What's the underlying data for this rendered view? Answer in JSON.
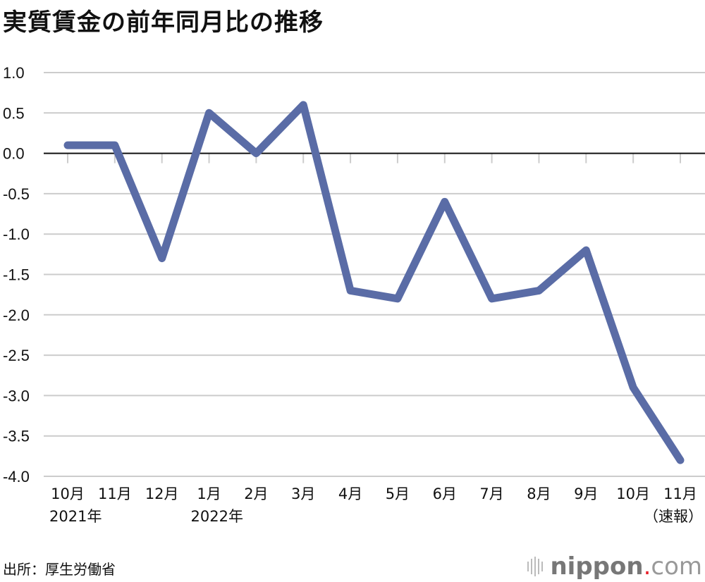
{
  "title": "実質賃金の前年同月比の推移",
  "source": "出所：厚生労働省",
  "logo": {
    "name": "nippon",
    "dot": ".",
    "suffix": "com"
  },
  "colors": {
    "line": "#5a6ca6",
    "grid": "#cccccc",
    "zero_line": "#111111"
  },
  "chart_data": {
    "type": "line",
    "title": "実質賃金の前年同月比の推移",
    "categories": [
      "10月",
      "11月",
      "12月",
      "1月",
      "2月",
      "3月",
      "4月",
      "5月",
      "6月",
      "7月",
      "8月",
      "9月",
      "10月",
      "11月"
    ],
    "category_sublabels": [
      "2021年",
      "",
      "",
      "2022年",
      "",
      "",
      "",
      "",
      "",
      "",
      "",
      "",
      "",
      "（速報）"
    ],
    "values": [
      0.1,
      0.1,
      -1.3,
      0.5,
      0.0,
      0.6,
      -1.7,
      -1.8,
      -0.6,
      -1.8,
      -1.7,
      -1.2,
      -2.9,
      -3.8
    ],
    "ylim": [
      -4.0,
      1.0
    ],
    "yticks": [
      "1.0",
      "0.5",
      "0.0",
      "-0.5",
      "-1.0",
      "-1.5",
      "-2.0",
      "-2.5",
      "-3.0",
      "-3.5",
      "-4.0"
    ],
    "grid": true,
    "legend": "none"
  }
}
